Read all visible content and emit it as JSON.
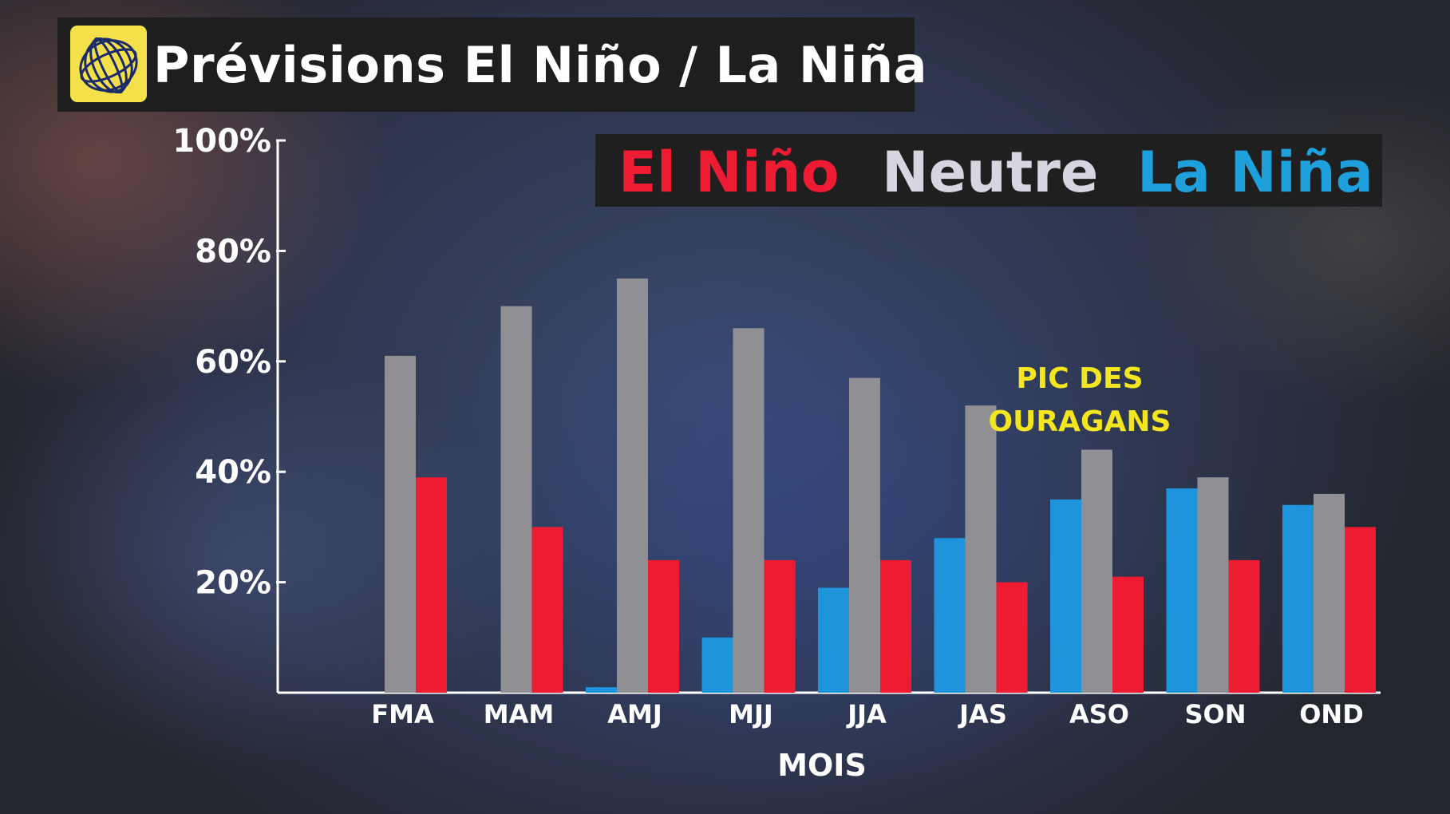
{
  "header": {
    "title": "Prévisions El Niño / La Niña",
    "logo_icon": "globe-logo-icon",
    "logo_color": "#f4e04a"
  },
  "legend": {
    "el_nino": "El Niño",
    "neutre": "Neutre",
    "la_nina": "La Niña"
  },
  "colors": {
    "el_nino": "#ee1c33",
    "neutre": "#8f8f94",
    "la_nina": "#1e94dc",
    "annotation": "#f4e61e"
  },
  "chart_data": {
    "type": "bar",
    "categories": [
      "FMA",
      "MAM",
      "AMJ",
      "MJJ",
      "JJA",
      "JAS",
      "ASO",
      "SON",
      "OND"
    ],
    "series": [
      {
        "name": "La Niña",
        "values": [
          0,
          0,
          1,
          10,
          19,
          28,
          35,
          37,
          34
        ]
      },
      {
        "name": "Neutre",
        "values": [
          61,
          70,
          75,
          66,
          57,
          52,
          44,
          39,
          36
        ]
      },
      {
        "name": "El Niño",
        "values": [
          39,
          30,
          24,
          24,
          24,
          20,
          21,
          24,
          30
        ]
      }
    ],
    "xlabel": "MOIS",
    "ylabel": "",
    "ylim": [
      0,
      100
    ],
    "yticks": [
      20,
      40,
      60,
      80,
      100
    ],
    "ytick_labels": [
      "20%",
      "40%",
      "60%",
      "80%",
      "100%"
    ],
    "grid": false,
    "legend_position": "top-right",
    "annotation": {
      "line1": "PIC DES",
      "line2": "OURAGANS",
      "category": "ASO"
    }
  }
}
